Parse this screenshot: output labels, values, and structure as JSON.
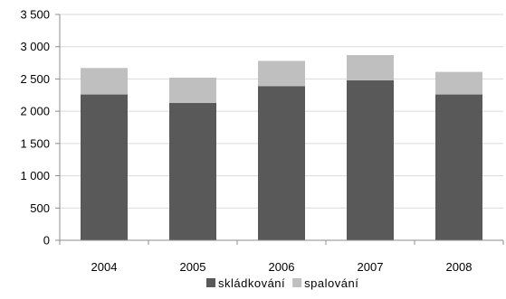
{
  "chart_data": {
    "type": "bar",
    "stacked": true,
    "categories": [
      "2004",
      "2005",
      "2006",
      "2007",
      "2008"
    ],
    "series": [
      {
        "name": "skládkování",
        "values": [
          2260,
          2130,
          2390,
          2480,
          2260
        ],
        "color": "#595959"
      },
      {
        "name": "spalování",
        "values": [
          410,
          390,
          390,
          390,
          350
        ],
        "color": "#bfbfbf"
      }
    ],
    "ylim": [
      0,
      3500
    ],
    "yticks": [
      0,
      500,
      1000,
      1500,
      2000,
      2500,
      3000,
      3500
    ],
    "ytick_labels": [
      "0",
      "500",
      "1 000",
      "1 500",
      "2 000",
      "2 500",
      "3 000",
      "3 500"
    ],
    "grid": true,
    "grid_color": "#d9d9d9",
    "axis_color": "#8c8c8c",
    "legend_position": "bottom",
    "title": "",
    "xlabel": "",
    "ylabel": ""
  }
}
